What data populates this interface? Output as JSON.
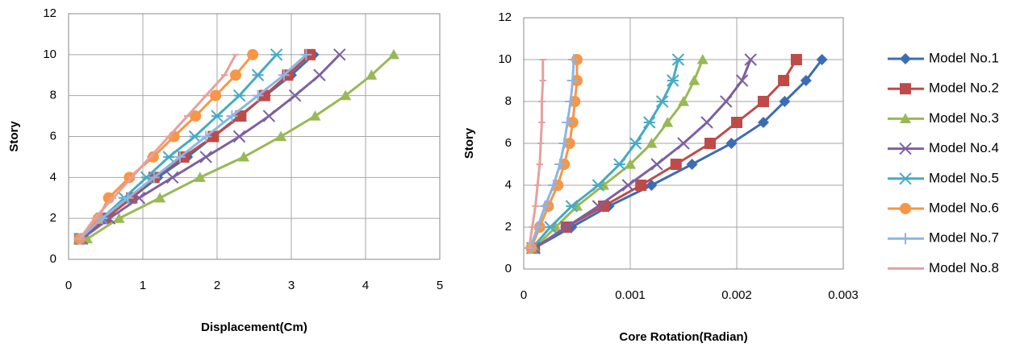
{
  "chart_data": [
    {
      "type": "line",
      "x_label": "Displacement(Cm)",
      "y_label": "Story",
      "y": [
        1,
        2,
        3,
        4,
        5,
        6,
        7,
        8,
        9,
        10
      ],
      "xlim": [
        0,
        5
      ],
      "xticks": [
        0,
        1,
        2,
        3,
        4,
        5
      ],
      "ylim": [
        0,
        12
      ],
      "yticks": [
        0,
        2,
        4,
        6,
        8,
        10,
        12
      ],
      "grid": true,
      "series": [
        {
          "name": "Model No.1",
          "color": "#3d6cb5",
          "marker": "diamond",
          "values": [
            0.15,
            0.5,
            0.85,
            1.2,
            1.6,
            1.95,
            2.3,
            2.65,
            3.0,
            3.3
          ]
        },
        {
          "name": "Model No.2",
          "color": "#be4b48",
          "marker": "square",
          "values": [
            0.15,
            0.5,
            0.85,
            1.15,
            1.55,
            1.95,
            2.32,
            2.64,
            2.95,
            3.25
          ]
        },
        {
          "name": "Model No.3",
          "color": "#98b954",
          "marker": "triangle",
          "values": [
            0.25,
            0.68,
            1.23,
            1.77,
            2.36,
            2.86,
            3.32,
            3.73,
            4.08,
            4.38
          ]
        },
        {
          "name": "Model No.4",
          "color": "#7d60a0",
          "marker": "x",
          "values": [
            0.18,
            0.55,
            0.95,
            1.4,
            1.85,
            2.3,
            2.7,
            3.05,
            3.38,
            3.65
          ]
        },
        {
          "name": "Model No.5",
          "color": "#46aac5",
          "marker": "star",
          "values": [
            0.15,
            0.45,
            0.75,
            1.05,
            1.35,
            1.7,
            2.0,
            2.3,
            2.55,
            2.8
          ]
        },
        {
          "name": "Model No.6",
          "color": "#f79646",
          "marker": "circle",
          "values": [
            0.15,
            0.4,
            0.54,
            0.82,
            1.14,
            1.42,
            1.71,
            1.98,
            2.25,
            2.48
          ]
        },
        {
          "name": "Model No.7",
          "color": "#8eb4e3",
          "marker": "plus",
          "values": [
            0.15,
            0.45,
            0.8,
            1.15,
            1.5,
            1.85,
            2.2,
            2.55,
            2.9,
            3.2
          ]
        },
        {
          "name": "Model No.8",
          "color": "#e6a09e",
          "marker": "dash",
          "values": [
            0.15,
            0.35,
            0.6,
            0.85,
            1.1,
            1.35,
            1.6,
            1.85,
            2.1,
            2.25
          ]
        }
      ]
    },
    {
      "type": "line",
      "x_label": "Core Rotation(Radian)",
      "y_label": "Story",
      "y": [
        1,
        2,
        3,
        4,
        5,
        6,
        7,
        8,
        9,
        10
      ],
      "xlim": [
        0,
        0.003
      ],
      "xticks": [
        0,
        0.001,
        0.002,
        0.003
      ],
      "ylim": [
        0,
        12
      ],
      "yticks": [
        0,
        2,
        4,
        6,
        8,
        10,
        12
      ],
      "grid": true,
      "series": [
        {
          "color": "#3d6cb5",
          "marker": "diamond",
          "values": [
            0.0001,
            0.00045,
            0.0008,
            0.0012,
            0.00158,
            0.00195,
            0.00225,
            0.00245,
            0.00265,
            0.0028
          ]
        },
        {
          "color": "#be4b48",
          "marker": "square",
          "values": [
            0.0001,
            0.0004,
            0.00075,
            0.0011,
            0.00143,
            0.00175,
            0.002,
            0.00225,
            0.00244,
            0.00256
          ]
        },
        {
          "color": "#98b954",
          "marker": "triangle",
          "values": [
            0.0001,
            0.0003,
            0.0005,
            0.00075,
            0.001,
            0.0012,
            0.00135,
            0.0015,
            0.0016,
            0.00168
          ]
        },
        {
          "color": "#7d60a0",
          "marker": "x",
          "values": [
            0.0001,
            0.0004,
            0.0007,
            0.00098,
            0.00125,
            0.0015,
            0.00172,
            0.0019,
            0.00205,
            0.00213
          ]
        },
        {
          "color": "#46aac5",
          "marker": "star",
          "values": [
            8e-05,
            0.00025,
            0.00045,
            0.0007,
            0.0009,
            0.00105,
            0.00118,
            0.0013,
            0.0014,
            0.00145
          ]
        },
        {
          "color": "#f79646",
          "marker": "circle",
          "values": [
            7e-05,
            0.00015,
            0.00023,
            0.00032,
            0.00038,
            0.00043,
            0.00046,
            0.00048,
            0.0005,
            0.0005
          ]
        },
        {
          "color": "#8eb4e3",
          "marker": "plus",
          "values": [
            6e-05,
            0.00013,
            0.0002,
            0.00028,
            0.00034,
            0.00038,
            0.00041,
            0.00044,
            0.00046,
            0.00047
          ]
        },
        {
          "color": "#e6a09e",
          "marker": "dash",
          "values": [
            5e-05,
            8e-05,
            0.00011,
            0.00013,
            0.00015,
            0.00016,
            0.00017,
            0.00017,
            0.00018,
            0.00018
          ]
        }
      ]
    }
  ]
}
